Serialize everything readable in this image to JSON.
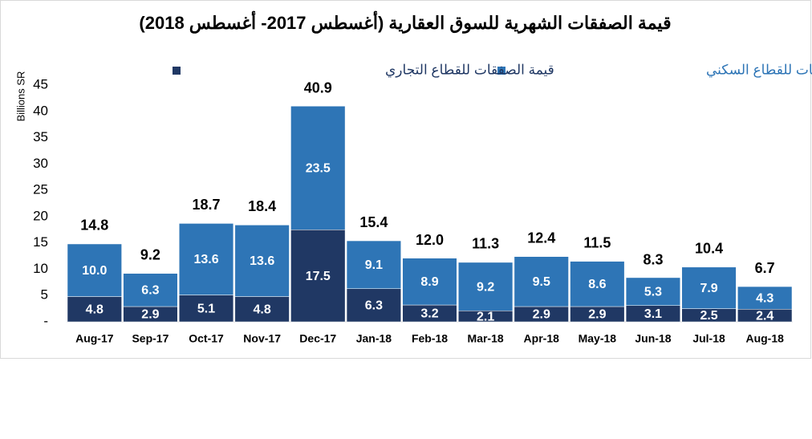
{
  "chart_data": {
    "type": "stacked-bar",
    "title": "قيمة الصفقات الشهرية للسوق العقارية (أغسطس 2017- أغسطس 2018)",
    "y_label": "Billions SR",
    "categories": [
      "Aug-17",
      "Sep-17",
      "Oct-17",
      "Nov-17",
      "Dec-17",
      "Jan-18",
      "Feb-18",
      "Mar-18",
      "Apr-18",
      "May-18",
      "Jun-18",
      "Jul-18",
      "Aug-18"
    ],
    "series": [
      {
        "name": "قيمة الصفقات للقطاع التجاري",
        "color": "#203864",
        "values": [
          4.8,
          2.9,
          5.1,
          4.8,
          17.5,
          6.3,
          3.2,
          2.1,
          2.9,
          2.9,
          3.1,
          2.5,
          2.4
        ],
        "value_labels": [
          "4.8",
          "2.9",
          "5.1",
          "4.8",
          "17.5",
          "6.3",
          "3.2",
          "2.1",
          "2.9",
          "2.9",
          "3.1",
          "2.5",
          "2.4"
        ]
      },
      {
        "name": "قيمة الصفقات للقطاع السكني",
        "color": "#2e75b6",
        "values": [
          10,
          6.3,
          13.6,
          13.6,
          23.5,
          9.1,
          8.9,
          9.2,
          9.5,
          8.6,
          5.3,
          7.9,
          4.3
        ],
        "value_labels": [
          "10.0",
          "6.3",
          "13.6",
          "13.6",
          "23.5",
          "9.1",
          "8.9",
          "9.2",
          "9.5",
          "8.6",
          "5.3",
          "7.9",
          "4.3"
        ]
      }
    ],
    "totals": {
      "values": [
        14.8,
        9.2,
        18.7,
        18.4,
        40.9,
        15.4,
        12,
        11.3,
        12.4,
        11.5,
        8.3,
        10.4,
        6.7
      ],
      "value_labels": [
        "14.8",
        "9.2",
        "18.7",
        "18.4",
        "40.9",
        "15.4",
        "12.0",
        "11.3",
        "12.4",
        "11.5",
        "8.3",
        "10.4",
        "6.7"
      ]
    },
    "ylim": [
      0,
      45
    ],
    "yticks": [
      {
        "value": 0,
        "label": "-"
      },
      5,
      10,
      15,
      20,
      25,
      30,
      35,
      40,
      45
    ]
  }
}
